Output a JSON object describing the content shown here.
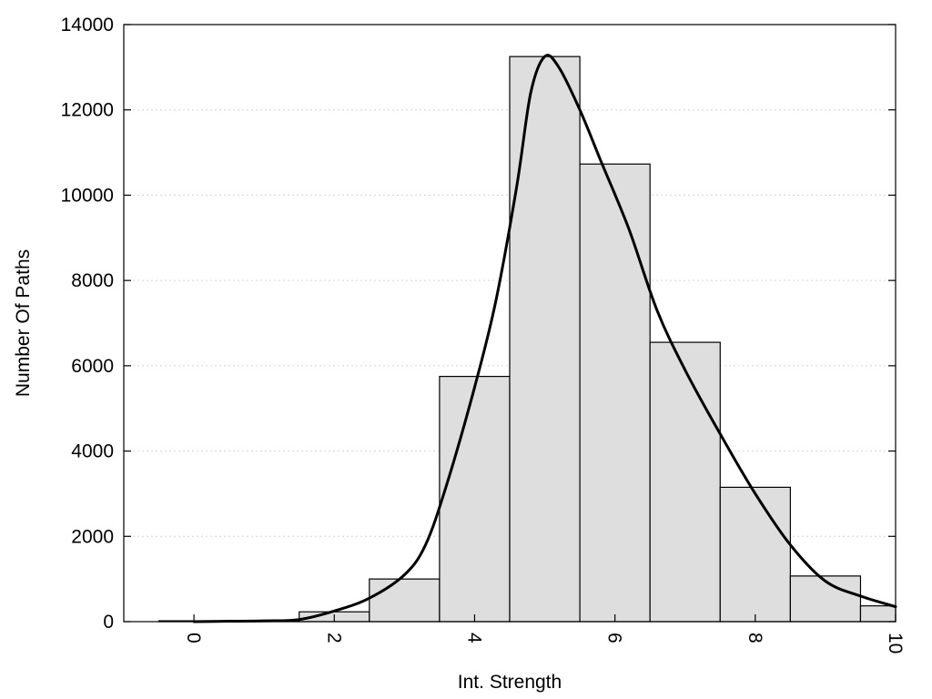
{
  "chart_data": {
    "type": "bar",
    "xlabel": "Int. Strength",
    "ylabel": "Number Of Paths",
    "xlim": [
      -1,
      10
    ],
    "ylim": [
      0,
      14000
    ],
    "grid": true,
    "x_ticks": [
      0,
      2,
      4,
      6,
      8,
      10
    ],
    "x_tick_labels": [
      "0",
      "2",
      "4",
      "6",
      "8",
      "10"
    ],
    "y_ticks": [
      0,
      2000,
      4000,
      6000,
      8000,
      10000,
      12000,
      14000
    ],
    "y_tick_labels": [
      "0",
      "2000",
      "4000",
      "6000",
      "8000",
      "10000",
      "12000",
      "14000"
    ],
    "histogram": {
      "bin_width": 1,
      "centers": [
        0,
        1,
        2,
        3,
        4,
        5,
        6,
        7,
        8,
        9,
        10
      ],
      "values": [
        20,
        30,
        230,
        1000,
        5750,
        13250,
        10730,
        6550,
        3150,
        1070,
        370
      ]
    },
    "density_curve": {
      "x": [
        0,
        0.5,
        1,
        1.5,
        2,
        2.5,
        3,
        3.3,
        3.6,
        4,
        4.3,
        4.6,
        4.8,
        5,
        5.2,
        5.5,
        5.8,
        6.2,
        6.6,
        7,
        7.5,
        8,
        8.5,
        9,
        9.5,
        10
      ],
      "y": [
        0,
        10,
        20,
        50,
        250,
        550,
        1100,
        1800,
        3200,
        5500,
        7500,
        10200,
        12400,
        13250,
        13000,
        12000,
        10800,
        9200,
        7300,
        5900,
        4400,
        3000,
        1800,
        950,
        600,
        350
      ]
    }
  },
  "colors": {
    "bar_fill": "#dedede",
    "bar_stroke": "#000000",
    "curve": "#000000",
    "grid": "#d6d6d6"
  }
}
